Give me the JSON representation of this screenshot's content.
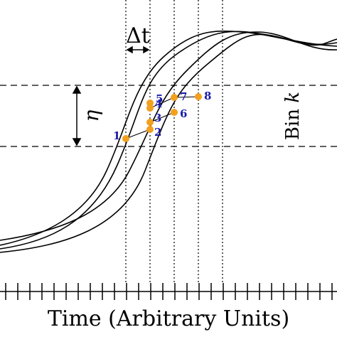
{
  "labels": {
    "delta_t": "Δt",
    "eta": "η",
    "bin_word": "Bin",
    "bin_index": "k",
    "x_axis": "Time (Arbitrary Units)"
  },
  "points": [
    {
      "label": "1"
    },
    {
      "label": "2"
    },
    {
      "label": "3"
    },
    {
      "label": "4"
    },
    {
      "label": "5"
    },
    {
      "label": "6"
    },
    {
      "label": "7"
    },
    {
      "label": "8"
    }
  ]
}
